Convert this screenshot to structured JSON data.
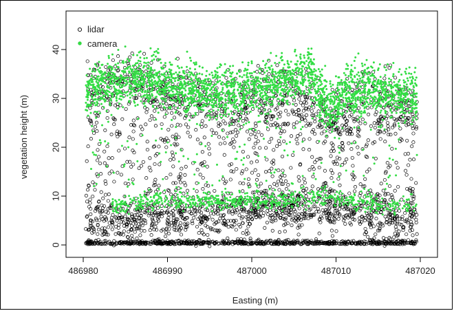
{
  "chart_data": {
    "type": "scatter",
    "title": "",
    "xlabel": "Easting (m)",
    "ylabel": "vegetation height (m)",
    "xlim": [
      486980,
      487020
    ],
    "ylim": [
      0,
      40
    ],
    "x_ticks": [
      486980,
      486990,
      487000,
      487010,
      487020
    ],
    "y_ticks": [
      0,
      10,
      20,
      30,
      40
    ],
    "grid": false,
    "legend": {
      "position": "top-left"
    },
    "series": [
      {
        "name": "lidar",
        "color": "#000000",
        "marker": "open-circle",
        "canopy_profile": [
          [
            486980,
            30
          ],
          [
            486983,
            31
          ],
          [
            486986,
            33
          ],
          [
            486989,
            31
          ],
          [
            486992,
            30
          ],
          [
            486995,
            29
          ],
          [
            486998,
            28
          ],
          [
            487001,
            30
          ],
          [
            487004,
            30
          ],
          [
            487007,
            29
          ],
          [
            487009,
            25
          ],
          [
            487011,
            27
          ],
          [
            487014,
            29
          ],
          [
            487017,
            28
          ],
          [
            487020,
            27
          ]
        ],
        "understory_profile": [
          [
            486980,
            6
          ],
          [
            486984,
            5
          ],
          [
            486988,
            6
          ],
          [
            486992,
            6
          ],
          [
            486996,
            6
          ],
          [
            487000,
            7
          ],
          [
            487004,
            7
          ],
          [
            487008,
            8
          ],
          [
            487012,
            7
          ],
          [
            487016,
            6
          ],
          [
            487020,
            6
          ]
        ]
      },
      {
        "name": "camera",
        "color": "#33dd44",
        "marker": "filled-dot",
        "canopy_profile": [
          [
            486980,
            31
          ],
          [
            486983,
            33
          ],
          [
            486986,
            34
          ],
          [
            486989,
            33
          ],
          [
            486992,
            32
          ],
          [
            486995,
            31
          ],
          [
            486998,
            31
          ],
          [
            487001,
            32
          ],
          [
            487004,
            34
          ],
          [
            487007,
            35
          ],
          [
            487009,
            28
          ],
          [
            487011,
            31
          ],
          [
            487014,
            32
          ],
          [
            487017,
            31
          ],
          [
            487020,
            30
          ]
        ],
        "understory_profile": [
          [
            486980,
            8
          ],
          [
            486984,
            8
          ],
          [
            486988,
            9
          ],
          [
            486992,
            9
          ],
          [
            486996,
            9
          ],
          [
            487000,
            9
          ],
          [
            487004,
            9
          ],
          [
            487008,
            10
          ],
          [
            487012,
            9
          ],
          [
            487016,
            8
          ],
          [
            487020,
            9
          ]
        ]
      }
    ]
  }
}
